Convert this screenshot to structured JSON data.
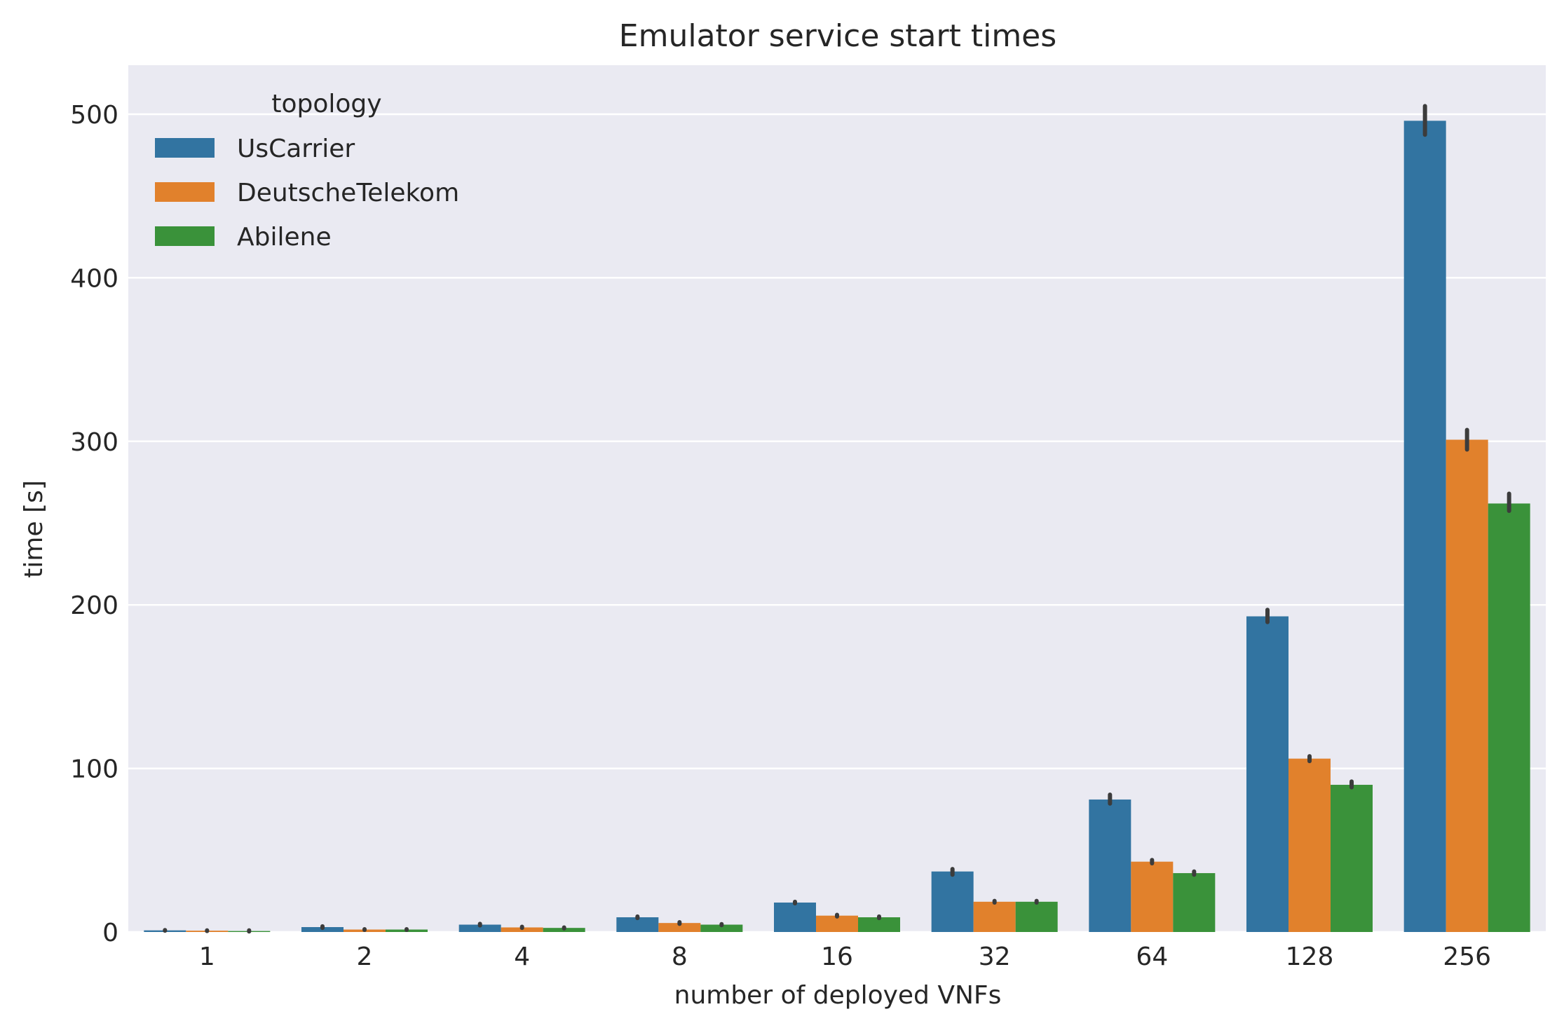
{
  "chart_data": {
    "type": "bar",
    "title": "Emulator service start times",
    "xlabel": "number of deployed VNFs",
    "ylabel": "time [s]",
    "categories": [
      "1",
      "2",
      "4",
      "8",
      "16",
      "32",
      "64",
      "128",
      "256"
    ],
    "ylim": [
      0,
      530
    ],
    "yticks": [
      "0",
      "100",
      "200",
      "300",
      "400",
      "500"
    ],
    "grid": true,
    "legend": {
      "title": "topology",
      "position": "top-left"
    },
    "series": [
      {
        "name": "UsCarrier",
        "color": "#3274a1",
        "values": [
          1,
          3,
          4.5,
          9,
          18,
          37,
          81,
          193,
          496
        ],
        "ci": [
          [
            0.8,
            1.2
          ],
          [
            2.5,
            3.5
          ],
          [
            4,
            5
          ],
          [
            8.5,
            9.5
          ],
          [
            17.5,
            18.5
          ],
          [
            35,
            38.5
          ],
          [
            78.5,
            84
          ],
          [
            189.5,
            197
          ],
          [
            487.5,
            505
          ]
        ]
      },
      {
        "name": "DeutscheTelekom",
        "color": "#e1812c",
        "values": [
          0.8,
          1.5,
          2.8,
          5.5,
          10,
          18.5,
          43,
          106,
          301
        ],
        "ci": [
          [
            0.6,
            1
          ],
          [
            1.3,
            1.7
          ],
          [
            2.5,
            3.2
          ],
          [
            5,
            6
          ],
          [
            9.5,
            10.5
          ],
          [
            18,
            19
          ],
          [
            42,
            44
          ],
          [
            104.5,
            107.5
          ],
          [
            295,
            307
          ]
        ]
      },
      {
        "name": "Abilene",
        "color": "#3a923a",
        "values": [
          0.6,
          1.5,
          2.5,
          4.5,
          9,
          18.5,
          36,
          90,
          262
        ],
        "ci": [
          [
            0.3,
            1
          ],
          [
            1.3,
            1.7
          ],
          [
            2.2,
            2.8
          ],
          [
            4.2,
            4.8
          ],
          [
            8.5,
            9.5
          ],
          [
            18,
            19
          ],
          [
            35,
            37
          ],
          [
            88.5,
            92
          ],
          [
            257.5,
            268
          ]
        ]
      }
    ]
  }
}
